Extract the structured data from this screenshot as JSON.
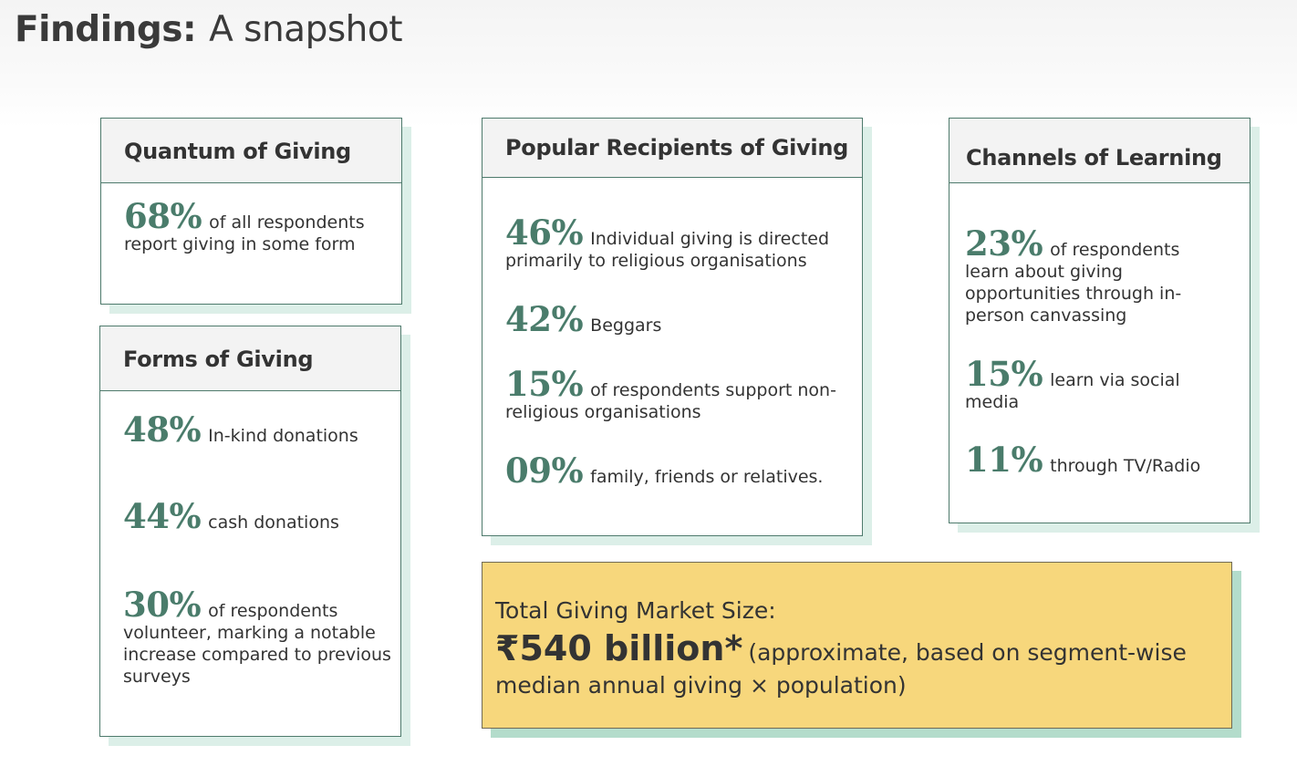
{
  "header": {
    "title_bold": "Findings:",
    "title_rest": "A snapshot"
  },
  "quantum": {
    "heading": "Quantum of Giving",
    "stats": [
      {
        "pct": "68%",
        "text": "of all respondents report giving in some form"
      }
    ]
  },
  "forms": {
    "heading": "Forms of Giving",
    "stats": [
      {
        "pct": "48%",
        "text": "In-kind donations"
      },
      {
        "pct": "44%",
        "text": "cash donations"
      },
      {
        "pct": "30%",
        "text": "of respondents volunteer, marking a notable increase compared to previous surveys"
      }
    ]
  },
  "recipients": {
    "heading": "Popular Recipients of Giving",
    "stats": [
      {
        "pct": "46%",
        "text": "Individual giving is directed primarily to religious organisations"
      },
      {
        "pct": "42%",
        "text": "Beggars"
      },
      {
        "pct": "15%",
        "text": "of respondents support non-religious organisations"
      },
      {
        "pct": "09%",
        "text": "family, friends or relatives."
      }
    ]
  },
  "channels": {
    "heading": "Channels of Learning",
    "stats": [
      {
        "pct": "23%",
        "text": "of respondents learn about giving opportunities through in-person canvassing"
      },
      {
        "pct": "15%",
        "text": "learn via social media"
      },
      {
        "pct": "11%",
        "text": "through TV/Radio"
      }
    ]
  },
  "market": {
    "title": "Total Giving Market Size:",
    "value": "₹540 billion*",
    "note": "(approximate, based on segment-wise median annual giving × population)"
  }
}
